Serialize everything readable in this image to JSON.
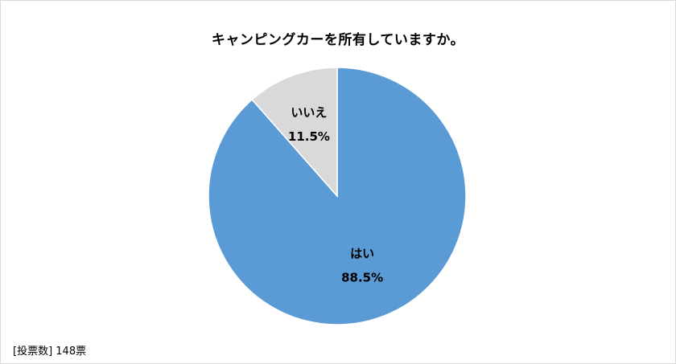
{
  "chart_data": {
    "type": "pie",
    "title": "キャンピングカーを所有していますか。",
    "categories": [
      "はい",
      "いいえ"
    ],
    "values": [
      88.5,
      11.5
    ],
    "value_labels": [
      "88.5%",
      "11.5%"
    ],
    "colors": [
      "#5b9bd5",
      "#d9d9d9"
    ],
    "start_angle_deg": 0,
    "direction": "clockwise",
    "legend": "none"
  },
  "footnote": "[投票数] 148票"
}
